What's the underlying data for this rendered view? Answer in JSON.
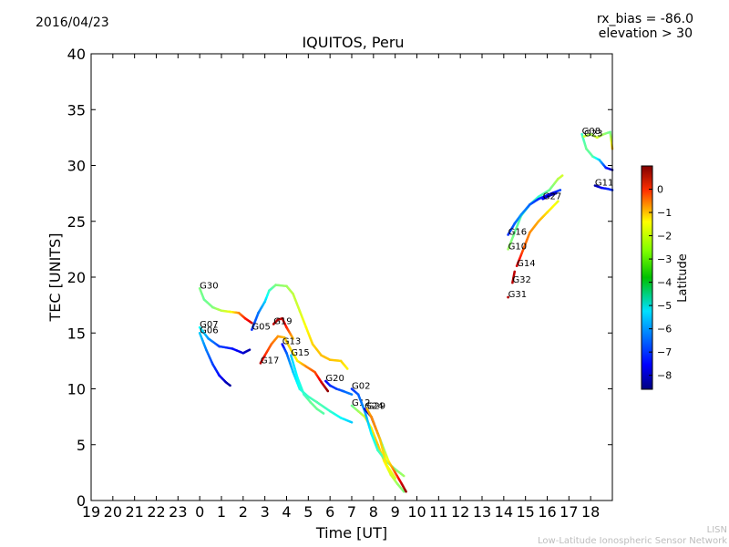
{
  "header": {
    "date": "2016/04/23",
    "rx_bias": "rx_bias = -86.0",
    "elevation": "elevation > 30"
  },
  "footer": {
    "line1": "LISN",
    "line2": "Low-Latitude Ionospheric Sensor Network"
  },
  "chart_data": {
    "type": "scatter",
    "title": "IQUITOS, Peru",
    "xlabel": "Time [UT]",
    "ylabel": "TEC [UNITS]",
    "x_tick_labels": [
      "19",
      "20",
      "21",
      "22",
      "23",
      "0",
      "1",
      "2",
      "3",
      "4",
      "5",
      "6",
      "7",
      "8",
      "9",
      "10",
      "11",
      "12",
      "13",
      "14",
      "15",
      "16",
      "17",
      "18"
    ],
    "x_range_hours": [
      19,
      43
    ],
    "ylim": [
      0,
      40
    ],
    "y_ticks": [
      0,
      5,
      10,
      15,
      20,
      25,
      30,
      35,
      40
    ],
    "grid": false,
    "colorbar": {
      "label": "Latitude",
      "range": [
        -8.6,
        1.0
      ],
      "ticks": [
        0,
        -1,
        -2,
        -3,
        -4,
        -5,
        -6,
        -7,
        -8
      ],
      "tick_labels": [
        "0",
        "−1",
        "−2",
        "−3",
        "−4",
        "−5",
        "−6",
        "−7",
        "−8"
      ],
      "colormap": "jet"
    },
    "series": [
      {
        "name": "G30",
        "points": [
          [
            24.0,
            19.0,
            -3.8
          ],
          [
            24.2,
            18.0,
            -4.0
          ],
          [
            24.6,
            17.3,
            -3.8
          ],
          [
            25.0,
            17.0,
            -3.2
          ],
          [
            25.4,
            16.9,
            -2.8
          ],
          [
            25.8,
            16.8,
            -1.5
          ],
          [
            26.1,
            16.3,
            -0.5
          ],
          [
            26.4,
            15.9,
            0.3
          ]
        ]
      },
      {
        "name": "G07",
        "points": [
          [
            24.0,
            15.5,
            -5.0
          ],
          [
            24.4,
            14.5,
            -6.0
          ],
          [
            24.9,
            13.8,
            -6.8
          ],
          [
            25.5,
            13.6,
            -7.2
          ],
          [
            26.0,
            13.2,
            -7.8
          ],
          [
            26.3,
            13.5,
            -8.2
          ]
        ]
      },
      {
        "name": "G06",
        "points": [
          [
            24.0,
            15.0,
            -5.5
          ],
          [
            24.3,
            13.5,
            -6.2
          ],
          [
            24.6,
            12.2,
            -6.8
          ],
          [
            24.9,
            11.2,
            -7.3
          ],
          [
            25.2,
            10.6,
            -8.0
          ],
          [
            25.4,
            10.3,
            -8.3
          ]
        ]
      },
      {
        "name": "G05",
        "points": [
          [
            26.4,
            15.3,
            -7.0
          ],
          [
            26.7,
            16.8,
            -6.3
          ],
          [
            27.0,
            17.8,
            -5.5
          ],
          [
            27.2,
            18.8,
            -4.5
          ],
          [
            27.5,
            19.3,
            -3.8
          ],
          [
            28.0,
            19.2,
            -3.5
          ],
          [
            28.3,
            18.5,
            -3.2
          ],
          [
            28.6,
            17.0,
            -3.0
          ],
          [
            28.9,
            15.5,
            -2.6
          ],
          [
            29.2,
            14.0,
            -2.2
          ],
          [
            29.6,
            13.0,
            -2.0
          ],
          [
            30.0,
            12.6,
            -2.0
          ],
          [
            30.5,
            12.5,
            -2.2
          ],
          [
            30.8,
            11.8,
            -2.5
          ]
        ]
      },
      {
        "name": "G19",
        "points": [
          [
            27.4,
            15.8,
            0.5
          ],
          [
            27.6,
            16.2,
            0.6
          ],
          [
            27.8,
            16.3,
            0.3
          ],
          [
            28.0,
            15.5,
            -0.5
          ],
          [
            28.3,
            14.5,
            -2.0
          ]
        ]
      },
      {
        "name": "G17",
        "points": [
          [
            26.8,
            12.3,
            0.5
          ],
          [
            27.0,
            13.0,
            -0.5
          ],
          [
            27.3,
            14.0,
            -1.2
          ],
          [
            27.6,
            14.7,
            -1.6
          ],
          [
            27.9,
            14.6,
            -2.0
          ],
          [
            28.2,
            13.5,
            -2.3
          ],
          [
            28.5,
            12.5,
            -2.5
          ],
          [
            28.9,
            12.0,
            -1.5
          ],
          [
            29.3,
            11.5,
            -1.0
          ],
          [
            29.6,
            10.6,
            0.2
          ],
          [
            29.9,
            9.8,
            0.8
          ]
        ]
      },
      {
        "name": "G13",
        "points": [
          [
            27.8,
            14.0,
            -7.5
          ],
          [
            28.0,
            13.2,
            -6.5
          ],
          [
            28.3,
            11.5,
            -5.5
          ],
          [
            28.6,
            10.0,
            -4.8
          ],
          [
            29.0,
            9.3,
            -4.5
          ],
          [
            29.4,
            8.8,
            -4.2
          ],
          [
            30.0,
            8.0,
            -4.5
          ],
          [
            30.5,
            7.4,
            -5.0
          ],
          [
            31.0,
            7.0,
            -5.5
          ]
        ]
      },
      {
        "name": "G15",
        "points": [
          [
            28.2,
            13.0,
            -5.5
          ],
          [
            28.5,
            11.0,
            -5.0
          ],
          [
            28.8,
            9.5,
            -4.5
          ],
          [
            29.1,
            8.8,
            -4.0
          ],
          [
            29.4,
            8.2,
            -4.0
          ],
          [
            29.7,
            7.8,
            -4.2
          ]
        ]
      },
      {
        "name": "G20",
        "points": [
          [
            29.8,
            10.7,
            -7.5
          ],
          [
            30.0,
            10.3,
            -7.0
          ],
          [
            30.3,
            10.0,
            -6.8
          ],
          [
            30.6,
            9.8,
            -6.5
          ],
          [
            31.0,
            9.5,
            -6.2
          ]
        ]
      },
      {
        "name": "G12",
        "points": [
          [
            31.0,
            8.5,
            -4.0
          ],
          [
            31.3,
            8.0,
            -3.5
          ],
          [
            31.6,
            7.5,
            -3.0
          ],
          [
            31.9,
            6.5,
            -2.5
          ],
          [
            32.2,
            5.0,
            -2.0
          ],
          [
            32.5,
            3.5,
            -2.5
          ],
          [
            32.8,
            2.3,
            -3.0
          ],
          [
            33.1,
            1.5,
            -3.5
          ],
          [
            33.4,
            0.8,
            -3.8
          ]
        ]
      },
      {
        "name": "G02",
        "points": [
          [
            31.0,
            10.0,
            -7.0
          ],
          [
            31.3,
            9.5,
            -6.5
          ],
          [
            31.6,
            8.0,
            -6.0
          ],
          [
            31.9,
            6.0,
            -5.0
          ],
          [
            32.2,
            4.5,
            -4.5
          ],
          [
            32.6,
            3.5,
            -4.0
          ],
          [
            33.0,
            2.8,
            -3.8
          ],
          [
            33.4,
            2.2,
            -3.5
          ]
        ]
      },
      {
        "name": "G24",
        "points": [
          [
            31.6,
            8.2,
            -7.8
          ],
          [
            31.9,
            7.5,
            -8.3
          ],
          [
            32.1,
            6.5,
            -8.0
          ],
          [
            32.4,
            5.0,
            -4.0
          ],
          [
            32.7,
            3.5,
            -2.5
          ],
          [
            33.0,
            2.5,
            -1.0
          ],
          [
            33.3,
            1.5,
            0.3
          ],
          [
            33.5,
            0.8,
            0.8
          ]
        ]
      },
      {
        "name": "G29",
        "points": [
          [
            31.7,
            8.2,
            -2.0
          ],
          [
            31.9,
            7.5,
            -1.5
          ],
          [
            32.1,
            6.5,
            -1.5
          ],
          [
            32.3,
            5.5,
            -2.0
          ],
          [
            32.6,
            3.2,
            -2.5
          ],
          [
            33.0,
            2.0,
            -3.0
          ]
        ]
      },
      {
        "name": "G31",
        "points": [
          [
            38.2,
            18.2,
            0.5
          ]
        ]
      },
      {
        "name": "G32",
        "points": [
          [
            38.4,
            19.5,
            0.5
          ],
          [
            38.5,
            20.5,
            0.4
          ]
        ]
      },
      {
        "name": "G14",
        "points": [
          [
            38.6,
            21.0,
            0.2
          ],
          [
            38.9,
            22.5,
            -1.0
          ],
          [
            39.2,
            24.0,
            -1.5
          ],
          [
            39.6,
            25.0,
            -1.8
          ],
          [
            40.0,
            25.8,
            -2.3
          ],
          [
            40.5,
            26.8,
            -2.8
          ]
        ]
      },
      {
        "name": "G10",
        "points": [
          [
            38.2,
            22.5,
            -3.5
          ],
          [
            38.5,
            24.0,
            -4.0
          ],
          [
            38.8,
            25.5,
            -4.3
          ],
          [
            39.2,
            26.5,
            -4.5
          ],
          [
            39.6,
            27.2,
            -4.5
          ],
          [
            40.1,
            27.8,
            -4.0
          ],
          [
            40.5,
            28.8,
            -3.3
          ],
          [
            40.7,
            29.1,
            -3.0
          ]
        ]
      },
      {
        "name": "G16",
        "points": [
          [
            38.2,
            23.8,
            -7.0
          ],
          [
            38.5,
            24.8,
            -6.5
          ],
          [
            38.8,
            25.6,
            -6.0
          ],
          [
            39.2,
            26.5,
            -6.5
          ],
          [
            39.6,
            27.0,
            -7.0
          ],
          [
            40.2,
            27.5,
            -7.5
          ],
          [
            40.6,
            27.8,
            -6.8
          ]
        ]
      },
      {
        "name": "G27",
        "points": [
          [
            39.8,
            27.0,
            -7.5
          ],
          [
            40.1,
            27.3,
            -8.0
          ],
          [
            40.4,
            27.5,
            -8.3
          ]
        ]
      },
      {
        "name": "G08",
        "points": [
          [
            41.6,
            32.8,
            -4.5
          ],
          [
            41.8,
            31.5,
            -4.0
          ],
          [
            42.1,
            30.8,
            -4.2
          ],
          [
            42.4,
            30.5,
            -5.5
          ],
          [
            42.7,
            29.8,
            -7.0
          ],
          [
            43.0,
            29.6,
            -8.3
          ]
        ]
      },
      {
        "name": "G23",
        "points": [
          [
            41.7,
            32.6,
            -3.0
          ],
          [
            42.0,
            32.8,
            -3.5
          ],
          [
            42.3,
            32.5,
            -3.0
          ],
          [
            42.6,
            32.8,
            -3.5
          ],
          [
            42.9,
            33.0,
            -4.0
          ],
          [
            43.0,
            31.5,
            -2.0
          ]
        ]
      },
      {
        "name": "G11",
        "points": [
          [
            42.2,
            28.2,
            -8.3
          ],
          [
            42.5,
            28.0,
            -7.5
          ],
          [
            42.8,
            27.9,
            -7.0
          ],
          [
            43.0,
            27.8,
            -7.0
          ]
        ]
      }
    ]
  }
}
